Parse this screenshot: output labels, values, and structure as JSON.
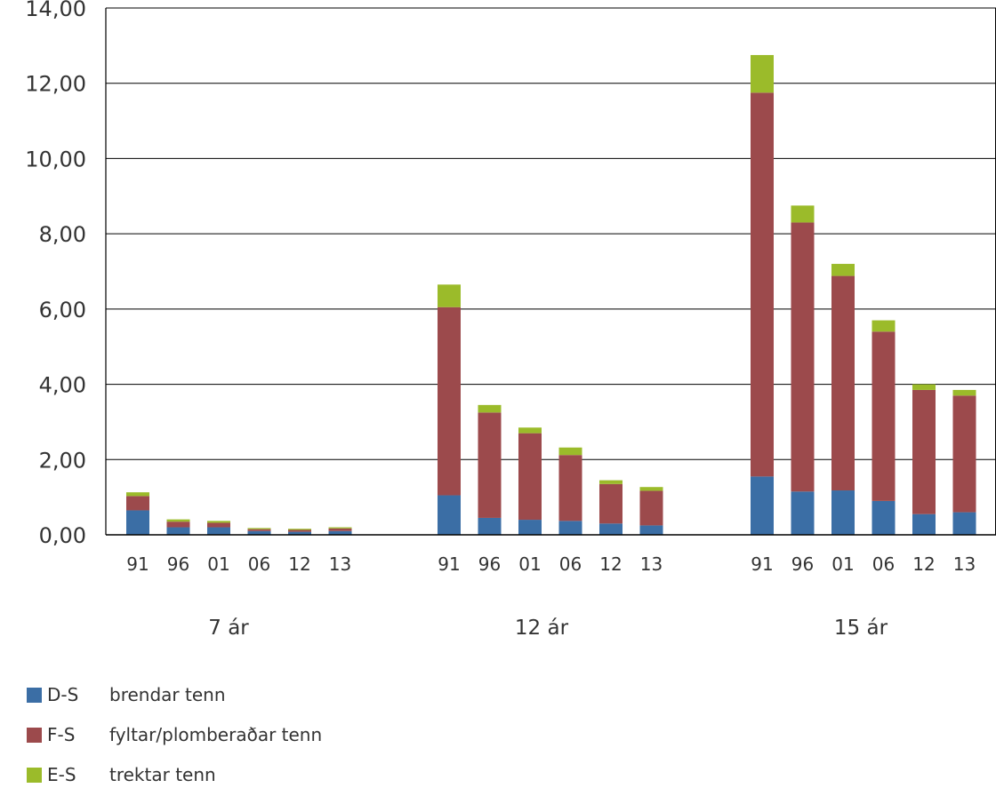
{
  "chart_data": {
    "type": "bar",
    "stacked": true,
    "title": "",
    "xlabel": "",
    "ylabel": "",
    "ylim": [
      0,
      14
    ],
    "y_ticks": [
      "0,00",
      "2,00",
      "4,00",
      "6,00",
      "8,00",
      "10,00",
      "12,00",
      "14,00"
    ],
    "grid": true,
    "legend_position": "bottom-left",
    "groups": [
      {
        "label": "7 ár",
        "categories": [
          "91",
          "96",
          "01",
          "06",
          "12",
          "13"
        ]
      },
      {
        "label": "12 ár",
        "categories": [
          "91",
          "96",
          "01",
          "06",
          "12",
          "13"
        ]
      },
      {
        "label": "15 ár",
        "categories": [
          "91",
          "96",
          "01",
          "06",
          "12",
          "13"
        ]
      }
    ],
    "series": [
      {
        "name": "D-S",
        "description": "brendar tenn",
        "color": "#3b6ea5",
        "values": [
          [
            0.65,
            0.2,
            0.2,
            0.1,
            0.08,
            0.1
          ],
          [
            1.05,
            0.45,
            0.4,
            0.37,
            0.3,
            0.25
          ],
          [
            1.55,
            1.15,
            1.18,
            0.9,
            0.55,
            0.6
          ]
        ]
      },
      {
        "name": "F-S",
        "description": "fyltar/plomberaðar tenn",
        "color": "#9c4a4c",
        "values": [
          [
            0.38,
            0.15,
            0.12,
            0.05,
            0.05,
            0.07
          ],
          [
            5.0,
            2.8,
            2.3,
            1.75,
            1.05,
            0.92
          ],
          [
            10.2,
            7.15,
            5.7,
            4.5,
            3.3,
            3.1
          ]
        ]
      },
      {
        "name": "E-S",
        "description": "trektar tenn",
        "color": "#9bbb2a",
        "values": [
          [
            0.1,
            0.06,
            0.05,
            0.03,
            0.03,
            0.03
          ],
          [
            0.6,
            0.2,
            0.15,
            0.2,
            0.1,
            0.1
          ],
          [
            1.0,
            0.45,
            0.32,
            0.3,
            0.15,
            0.15
          ]
        ]
      }
    ]
  }
}
